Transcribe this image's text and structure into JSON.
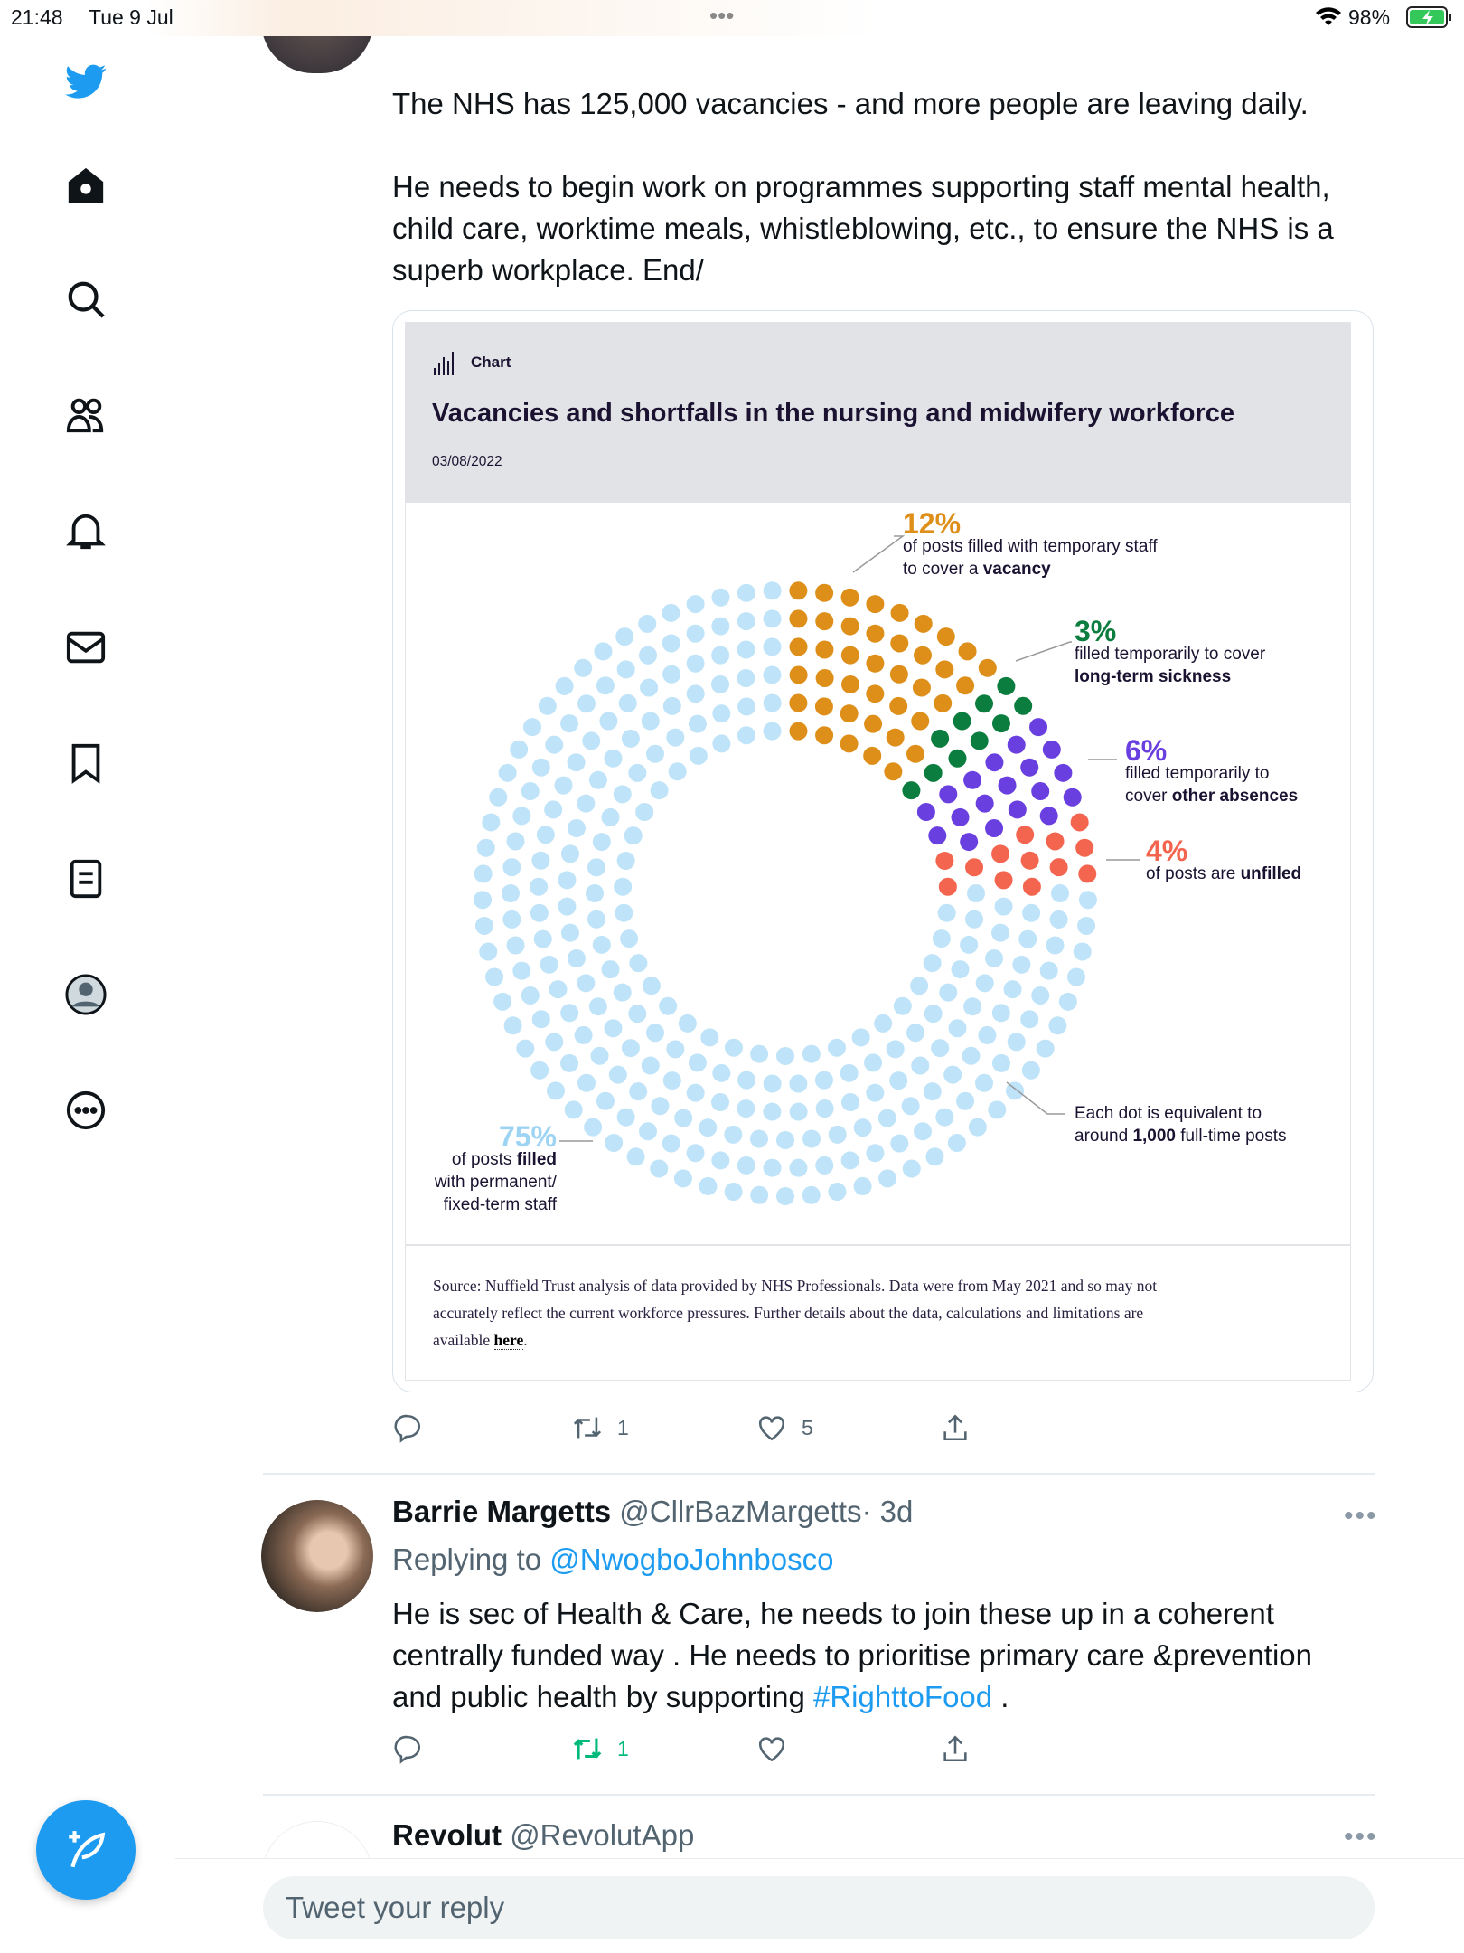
{
  "status": {
    "time": "21:48",
    "date": "Tue 9 Jul",
    "battery": "98%",
    "dots": "•••"
  },
  "sidebar": {
    "items": [
      "twitter-logo",
      "home",
      "search",
      "communities",
      "notifications",
      "messages",
      "bookmarks",
      "lists",
      "profile",
      "more"
    ]
  },
  "tweet1": {
    "lines": [
      "The NHS has 125,000 vacancies - and more people are leaving daily.",
      "He needs to begin work on programmes supporting staff mental health,",
      "child care, worktime meals, whistleblowing, etc., to ensure the NHS is a",
      "superb workplace. End/"
    ],
    "actions": {
      "retweets": "1",
      "likes": "5"
    }
  },
  "chart_card": {
    "kicker": "Chart",
    "title": "Vacancies and shortfalls in the nursing and midwifery workforce",
    "date": "03/08/2022",
    "source": [
      "Source: Nuffield Trust analysis of data provided by NHS Professionals. Data were from May 2021 and so may not",
      "accurately reflect the current workforce pressures. Further details about the data, calculations and limitations are"
    ],
    "source_tail": "available ",
    "source_link": "here",
    "source_end": ".",
    "dot_note": [
      "Each dot is equivalent to",
      "around ",
      "1,000",
      " full-time posts"
    ]
  },
  "chart_data": {
    "type": "pie",
    "style": "dot-donut",
    "title": "Vacancies and shortfalls in the nursing and midwifery workforce",
    "segments": [
      {
        "value": 12,
        "pct": "12%",
        "lines": [
          "of posts filled with temporary staff",
          "to cover a "
        ],
        "bold": "vacancy",
        "color": "#dd8f1a"
      },
      {
        "value": 3,
        "pct": "3%",
        "lines": [
          "filled temporarily to cover",
          ""
        ],
        "bold": "long-term sickness",
        "color": "#0b7d3e"
      },
      {
        "value": 6,
        "pct": "6%",
        "lines": [
          "filled temporarily to",
          "cover "
        ],
        "bold": "other absences",
        "color": "#6a3fe0"
      },
      {
        "value": 4,
        "pct": "4%",
        "lines": [
          "of posts are "
        ],
        "bold": "unfilled",
        "color": "#f46550"
      },
      {
        "value": 75,
        "pct": "75%",
        "lines": [
          "of posts ",
          "with permanent/",
          "fixed-term staff"
        ],
        "bold": "filled",
        "color": "#bfe3f8"
      }
    ]
  },
  "reply": {
    "name": "Barrie Margetts",
    "handle": "@CllrBazMargetts",
    "time": "· 3d",
    "replying": "Replying to ",
    "replying_to": "@NwogboJohnbosco",
    "lines": [
      "He is sec of Health  & Care, he needs to join these up in a coherent",
      "centrally funded way . He needs to prioritise primary care &prevention",
      "and public health by supporting "
    ],
    "hashtag": "#RighttoFood",
    "end": " .",
    "retweets": "1",
    "more": "•••"
  },
  "next": {
    "name": "Revolut",
    "handle": "@RevolutApp",
    "more": "•••"
  },
  "composer": {
    "placeholder": "Tweet your reply"
  }
}
